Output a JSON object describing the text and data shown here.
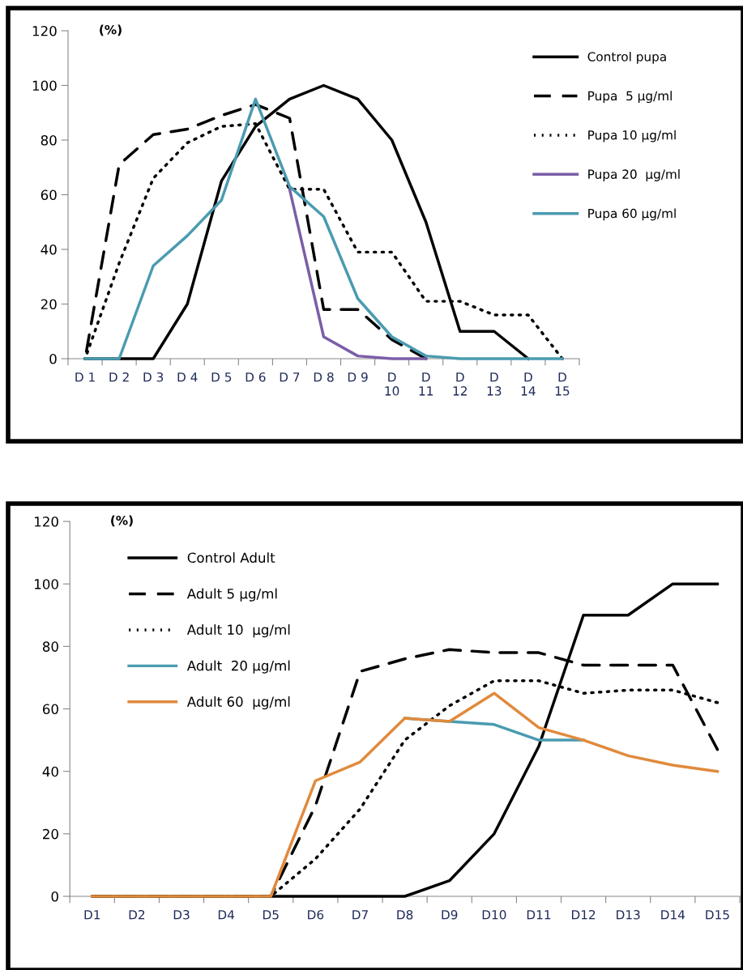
{
  "chart_data": [
    {
      "type": "line",
      "ylabel": "(%)",
      "categories": [
        "D 1",
        "D 2",
        "D 3",
        "D 4",
        "D 5",
        "D 6",
        "D 7",
        "D 8",
        "D 9",
        "D\n10",
        "D\n11",
        "D\n12",
        "D\n13",
        "D\n14",
        "D\n15"
      ],
      "ylim": [
        0,
        120
      ],
      "yticks": [
        0,
        20,
        40,
        60,
        80,
        100,
        120
      ],
      "legend": "top right",
      "grid": false,
      "series": [
        {
          "name": "Control pupa",
          "color": "#000000",
          "line_style": "solid",
          "values": [
            0,
            0,
            0,
            20,
            65,
            85,
            95,
            100,
            95,
            80,
            50,
            10,
            10,
            0,
            null
          ]
        },
        {
          "name": "Pupa  5 µg/ml",
          "color": "#000000",
          "line_style": "dashed",
          "values": [
            0,
            71,
            82,
            84,
            89,
            93,
            88,
            18,
            18,
            7,
            0,
            null,
            null,
            null,
            null
          ]
        },
        {
          "name": "Pupa 10 µg/ml",
          "color": "#000000",
          "line_style": "dotted",
          "values": [
            0,
            35,
            66,
            79,
            85,
            86,
            62,
            62,
            39,
            39,
            21,
            21,
            16,
            16,
            0
          ]
        },
        {
          "name": "Pupa 20  µg/ml",
          "color": "#7b5ea7",
          "line_style": "solid",
          "values": [
            null,
            null,
            null,
            null,
            null,
            null,
            62,
            8,
            1,
            0,
            0,
            null,
            null,
            null,
            null
          ]
        },
        {
          "name": "Pupa 60 µg/ml",
          "color": "#4a9bb0",
          "line_style": "solid",
          "values": [
            0,
            0,
            34,
            45,
            58,
            95,
            63,
            52,
            22,
            8,
            1,
            0,
            0,
            0,
            0
          ]
        }
      ]
    },
    {
      "type": "line",
      "ylabel": "(%)",
      "categories": [
        "D1",
        "D2",
        "D3",
        "D4",
        "D5",
        "D6",
        "D7",
        "D8",
        "D9",
        "D10",
        "D11",
        "D12",
        "D13",
        "D14",
        "D15"
      ],
      "ylim": [
        0,
        120
      ],
      "yticks": [
        0,
        20,
        40,
        60,
        80,
        100,
        120
      ],
      "legend": "top left",
      "grid": false,
      "series": [
        {
          "name": "Control Adult",
          "color": "#000000",
          "line_style": "solid",
          "values": [
            0,
            0,
            0,
            0,
            0,
            0,
            0,
            0,
            5,
            20,
            48,
            90,
            90,
            100,
            100
          ]
        },
        {
          "name": "Adult 5 µg/ml",
          "color": "#000000",
          "line_style": "dashed",
          "values": [
            0,
            0,
            0,
            0,
            0,
            29,
            72,
            76,
            79,
            78,
            78,
            74,
            74,
            74,
            47
          ]
        },
        {
          "name": "Adult 10  µg/ml",
          "color": "#000000",
          "line_style": "dotted",
          "values": [
            0,
            0,
            0,
            0,
            0,
            12,
            28,
            50,
            61,
            69,
            69,
            65,
            66,
            66,
            62
          ]
        },
        {
          "name": "Adult  20 µg/ml",
          "color": "#4a9bb0",
          "line_style": "solid",
          "values": [
            null,
            null,
            null,
            null,
            null,
            null,
            null,
            57,
            56,
            55,
            50,
            50,
            null,
            null,
            null
          ]
        },
        {
          "name": "Adult 60  µg/ml",
          "color": "#e08a3c",
          "line_style": "solid",
          "values": [
            0,
            0,
            0,
            0,
            0,
            37,
            43,
            57,
            56,
            65,
            54,
            50,
            45,
            42,
            40
          ]
        }
      ]
    }
  ]
}
